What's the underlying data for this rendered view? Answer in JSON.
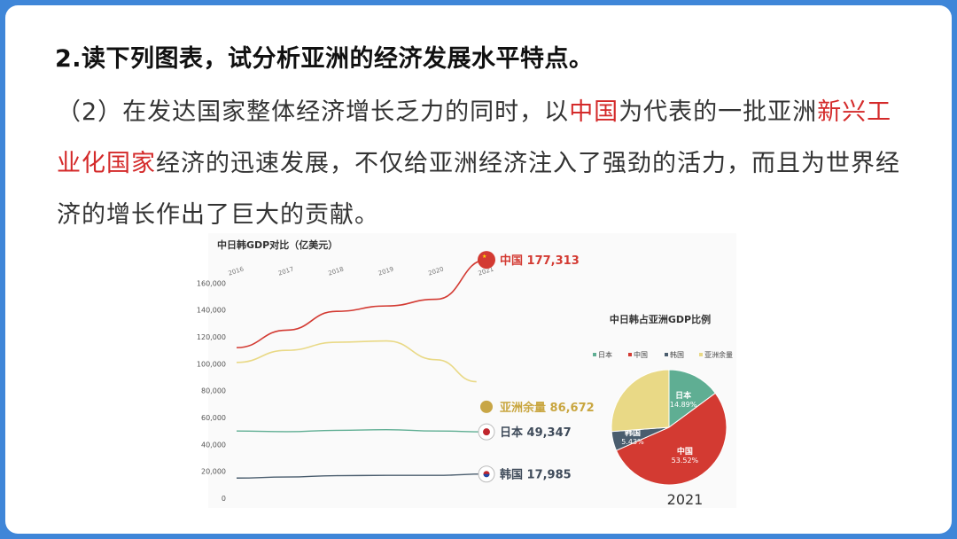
{
  "slide": {
    "heading": "2.读下列图表，试分析亚洲的经济发展水平特点。",
    "para": [
      {
        "text": "（2）在发达国家整体经济增长乏力的同时，以",
        "hl": false
      },
      {
        "text": "中国",
        "hl": true
      },
      {
        "text": "为代表的一批亚洲",
        "hl": false
      },
      {
        "text": "新兴工业化国家",
        "hl": true
      },
      {
        "text": "经济的迅速发展，不仅给亚洲经济注入了强劲的活力，而且为世界经济的增长作出了巨大的贡献。",
        "hl": false
      }
    ]
  },
  "colors": {
    "china": "#d33a32",
    "asia_rest": "#e9d986",
    "japan": "#5fae93",
    "korea": "#4a5d6e",
    "frame": "#3f86d8"
  },
  "chart_data": [
    {
      "type": "line",
      "title": "中日韩GDP对比（亿美元）",
      "x": [
        "2016",
        "2017",
        "2018",
        "2019",
        "2020",
        "2021"
      ],
      "ylim": [
        0,
        180000
      ],
      "yticks": [
        "0",
        "20,000",
        "40,000",
        "60,000",
        "80,000",
        "100,000",
        "120,000",
        "140,000",
        "160,000"
      ],
      "grid": false,
      "series": [
        {
          "name": "中国",
          "value_label": "177,313",
          "values": [
            112000,
            125000,
            139000,
            143000,
            148000,
            177313
          ]
        },
        {
          "name": "亚洲余量",
          "value_label": "86,672",
          "values": [
            101000,
            110000,
            116000,
            117000,
            103000,
            86672
          ]
        },
        {
          "name": "日本",
          "value_label": "49,347",
          "values": [
            50000,
            49500,
            50500,
            51000,
            50000,
            49347
          ]
        },
        {
          "name": "韩国",
          "value_label": "17,985",
          "values": [
            15000,
            15800,
            16800,
            17000,
            17000,
            17985
          ]
        }
      ]
    },
    {
      "type": "pie",
      "title": "中日韩占亚洲GDP比例",
      "legend": [
        "日本",
        "中国",
        "韩国",
        "亚洲余量"
      ],
      "legend_placement": "top",
      "year": "2021",
      "slices": [
        {
          "name": "日本",
          "label": "14.89%",
          "value": 14.89
        },
        {
          "name": "中国",
          "label": "53.52%",
          "value": 53.52
        },
        {
          "name": "韩国",
          "label": "5.43%",
          "value": 5.43
        },
        {
          "name": "亚洲余量",
          "label": "",
          "value": 26.16
        }
      ]
    }
  ]
}
